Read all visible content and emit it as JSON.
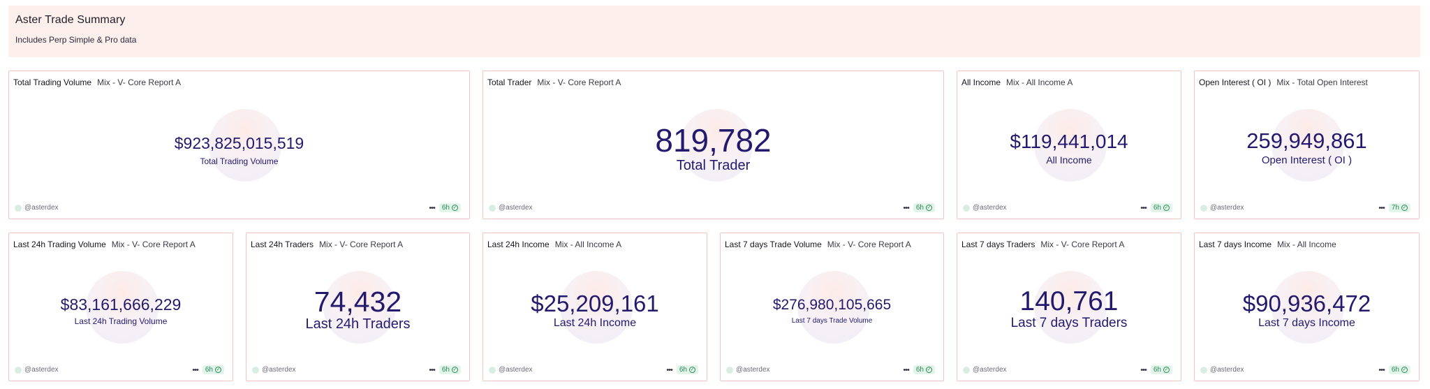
{
  "header": {
    "title": "Aster Trade Summary",
    "subtitle": "Includes Perp Simple & Pro data"
  },
  "colors": {
    "header_bg": "#fdf0ec",
    "card_border": "#f2c6bd",
    "metric_text": "#231a6e",
    "badge_bg": "#e3f5ea",
    "badge_text": "#2a8a55"
  },
  "cards": [
    {
      "title": "Total Trading Volume",
      "query": "Mix - V- Core Report A",
      "value": "$923,825,015,519",
      "label": "Total Trading Volume",
      "author": "@asterdex",
      "age": "6h"
    },
    {
      "title": "Total Trader",
      "query": "Mix - V- Core Report A",
      "value": "819,782",
      "label": "Total Trader",
      "author": "@asterdex",
      "age": "6h"
    },
    {
      "title": "All Income",
      "query": "Mix - All Income A",
      "value": "$119,441,014",
      "label": "All Income",
      "author": "@asterdex",
      "age": "6h"
    },
    {
      "title": "Open Interest ( OI )",
      "query": "Mix - Total Open Interest",
      "value": "259,949,861",
      "label": "Open Interest ( OI )",
      "author": "@asterdex",
      "age": "7h"
    },
    {
      "title": "Last 24h Trading Volume",
      "query": "Mix - V- Core Report A",
      "value": "$83,161,666,229",
      "label": "Last 24h Trading Volume",
      "author": "@asterdex",
      "age": "6h"
    },
    {
      "title": "Last 24h Traders",
      "query": "Mix - V- Core Report A",
      "value": "74,432",
      "label": "Last 24h Traders",
      "author": "@asterdex",
      "age": "6h"
    },
    {
      "title": "Last 24h Income",
      "query": "Mix - All Income A",
      "value": "$25,209,161",
      "label": "Last 24h Income",
      "author": "@asterdex",
      "age": "6h"
    },
    {
      "title": "Last 7 days Trade Volume",
      "query": "Mix - V- Core Report A",
      "value": "$276,980,105,665",
      "label": "Last 7 days Trade Volume",
      "author": "@asterdex",
      "age": "6h"
    },
    {
      "title": "Last 7 days Traders",
      "query": "Mix - V- Core Report A",
      "value": "140,761",
      "label": "Last 7 days Traders",
      "author": "@asterdex",
      "age": "6h"
    },
    {
      "title": "Last 7 days Income",
      "query": "Mix - All Income",
      "value": "$90,936,472",
      "label": "Last 7 days Income",
      "author": "@asterdex",
      "age": "6h"
    }
  ]
}
